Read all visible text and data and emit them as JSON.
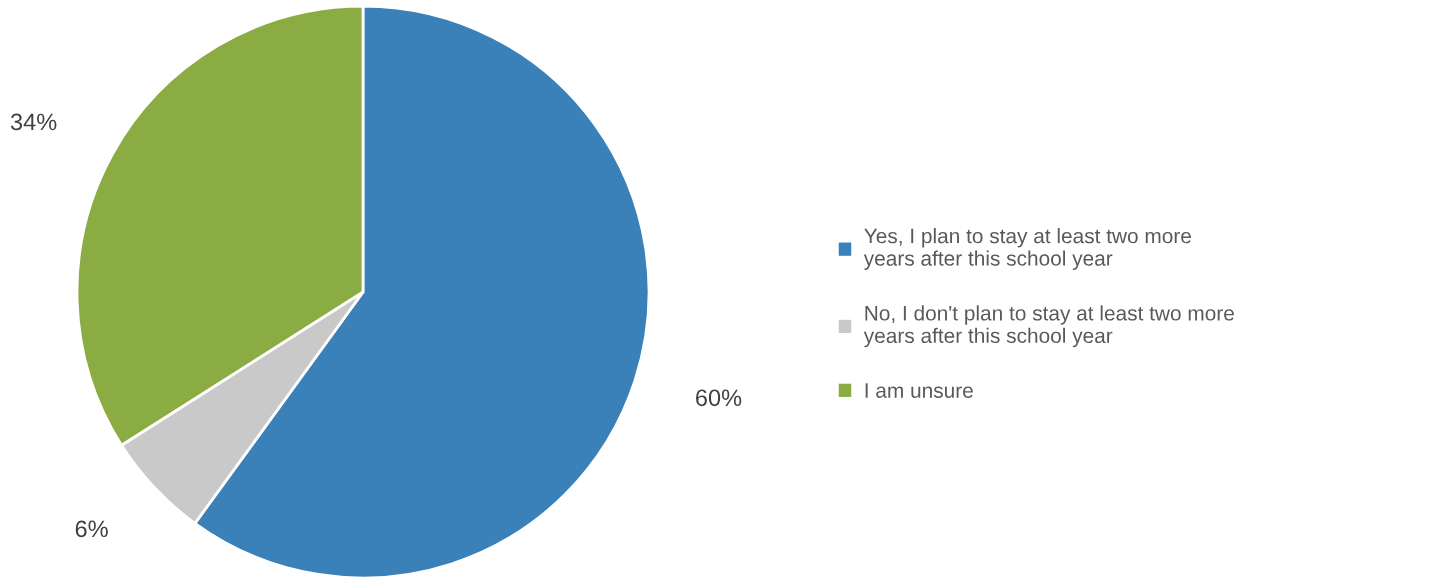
{
  "chart_data": {
    "type": "pie",
    "categories": [
      "Yes, I plan to stay at least two more years after this school year",
      "No, I don't plan to stay at least two more years after this school year",
      "I am unsure"
    ],
    "values": [
      60,
      6,
      34
    ],
    "value_labels": [
      "60%",
      "6%",
      "34%"
    ],
    "colors": [
      "#3a80b9",
      "#c9c9c9",
      "#8bab43"
    ],
    "legend": "right"
  }
}
